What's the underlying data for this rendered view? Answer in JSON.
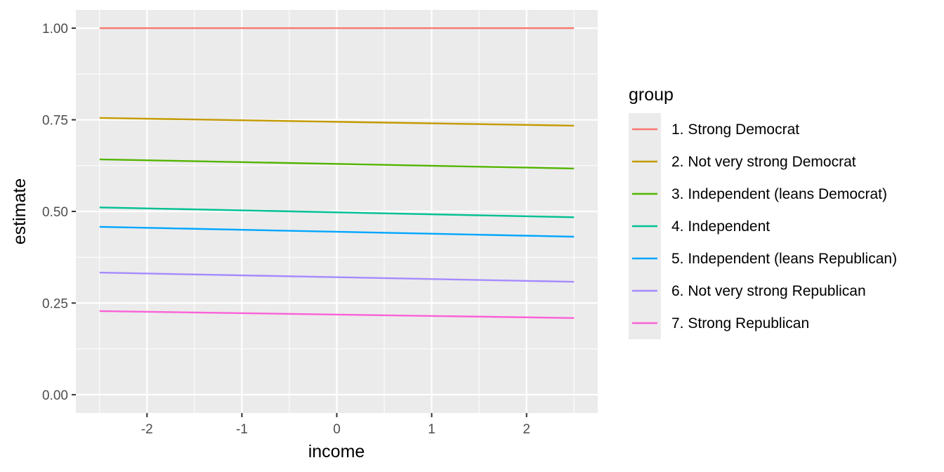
{
  "chart_data": {
    "type": "line",
    "xlabel": "income",
    "ylabel": "estimate",
    "x": [
      -2.5,
      2.5
    ],
    "xlim": [
      -2.75,
      2.75
    ],
    "ylim": [
      -0.05,
      1.05
    ],
    "x_ticks": [
      -2,
      -1,
      0,
      1,
      2
    ],
    "x_tick_labels": [
      "-2",
      "-1",
      "0",
      "1",
      "2"
    ],
    "y_ticks": [
      0,
      0.25,
      0.5,
      0.75,
      1
    ],
    "y_tick_labels": [
      "0.00",
      "0.25",
      "0.50",
      "0.75",
      "1.00"
    ],
    "grid": true,
    "legend": {
      "title": "group",
      "placement": "right"
    },
    "series": [
      {
        "name": "1. Strong Democrat",
        "color": "#F8766D",
        "values": [
          1.0,
          1.0
        ]
      },
      {
        "name": "2. Not very strong Democrat",
        "color": "#C49A00",
        "values": [
          0.755,
          0.734
        ]
      },
      {
        "name": "3. Independent (leans Democrat)",
        "color": "#53B400",
        "values": [
          0.642,
          0.617
        ]
      },
      {
        "name": "4. Independent",
        "color": "#00C094",
        "values": [
          0.511,
          0.484
        ]
      },
      {
        "name": "5. Independent (leans Republican)",
        "color": "#00A6FF",
        "values": [
          0.458,
          0.431
        ]
      },
      {
        "name": "6. Not very strong Republican",
        "color": "#A58AFF",
        "values": [
          0.333,
          0.308
        ]
      },
      {
        "name": "7. Strong Republican",
        "color": "#FB61D7",
        "values": [
          0.228,
          0.209
        ]
      }
    ]
  }
}
